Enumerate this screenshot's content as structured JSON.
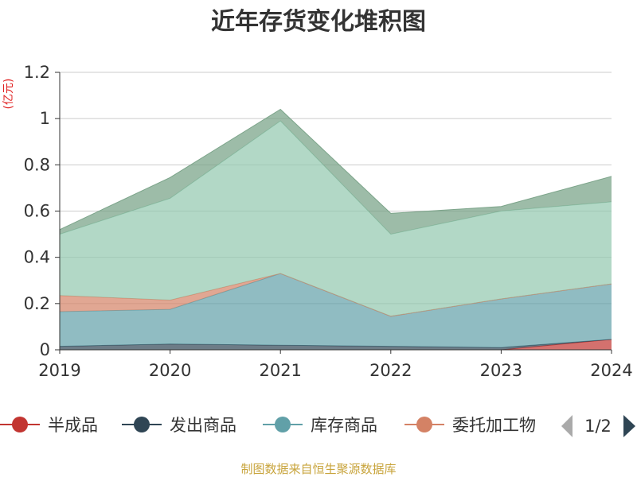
{
  "chart_data": {
    "type": "area",
    "stacked": true,
    "title": "近年存货变化堆积图",
    "unit": "(亿元)",
    "x": [
      "2019",
      "2020",
      "2021",
      "2022",
      "2023",
      "2024"
    ],
    "ylim": [
      0,
      1.2
    ],
    "yticks": [
      "0",
      "0.2",
      "0.4",
      "0.6",
      "0.8",
      "1",
      "1.2"
    ],
    "grid": true,
    "series": [
      {
        "name": "半成品",
        "color": "#c23531",
        "values": [
          0,
          0,
          0,
          0,
          0,
          0.045
        ]
      },
      {
        "name": "发出商品",
        "color": "#2f4554",
        "values": [
          0.015,
          0.025,
          0.02,
          0.015,
          0.01,
          0
        ]
      },
      {
        "name": "库存商品",
        "color": "#61a0a8",
        "values": [
          0.15,
          0.15,
          0.31,
          0.13,
          0.21,
          0.24
        ]
      },
      {
        "name": "委托加工物资",
        "color": "#d48265",
        "values": [
          0.07,
          0.04,
          0,
          0,
          0,
          0
        ]
      },
      {
        "name": "",
        "color": "#91c7ae",
        "values": [
          0.265,
          0.44,
          0.66,
          0.355,
          0.38,
          0.355
        ]
      },
      {
        "name": "",
        "color": "#749f83",
        "values": [
          0.02,
          0.09,
          0.05,
          0.09,
          0.02,
          0.11
        ]
      }
    ]
  },
  "legend": {
    "items": [
      {
        "label": "半成品",
        "color": "#c23531"
      },
      {
        "label": "发出商品",
        "color": "#2f4554"
      },
      {
        "label": "库存商品",
        "color": "#61a0a8"
      },
      {
        "label": "委托加工物",
        "color": "#d48265"
      }
    ],
    "page": "1/2",
    "prev_icon": "triangle-left-icon",
    "next_icon": "triangle-right-icon",
    "prev_color": "#aaaaaa",
    "next_color": "#2f4554"
  },
  "source": "制图数据来自恒生聚源数据库"
}
